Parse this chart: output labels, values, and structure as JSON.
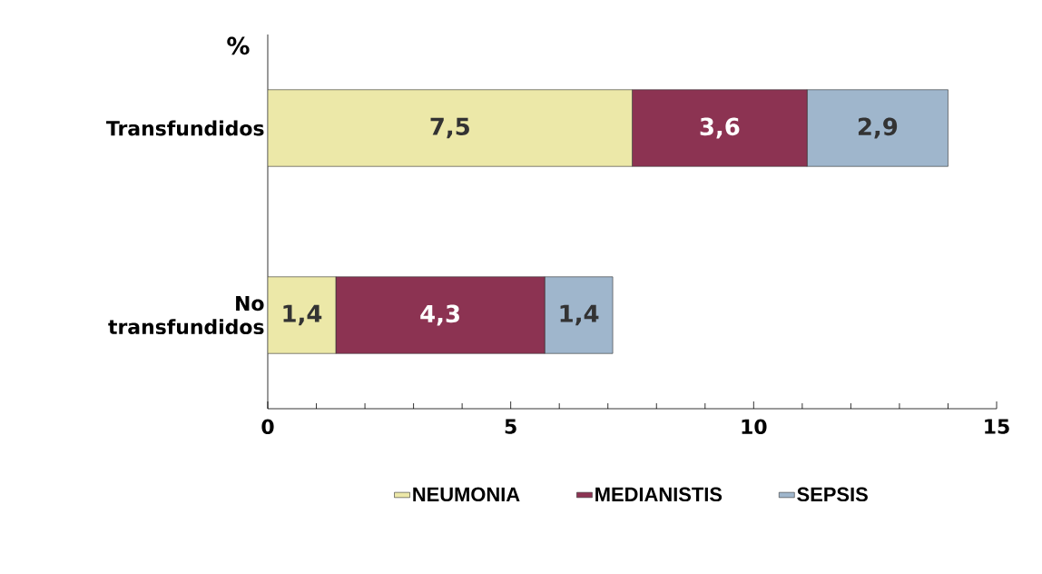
{
  "chart_data": {
    "type": "bar",
    "orientation": "horizontal",
    "stacked": true,
    "ylabel": "%",
    "categories": [
      "Transfundidos",
      "No transfundidos"
    ],
    "series": [
      {
        "name": "NEUMONIA",
        "color": "#ece8a8",
        "values": [
          7.5,
          1.4
        ],
        "value_labels": [
          "7,5",
          "1,4"
        ]
      },
      {
        "name": "MEDIANISTIS",
        "color": "#8c3352",
        "values": [
          3.6,
          4.3
        ],
        "value_labels": [
          "3,6",
          "4,3"
        ]
      },
      {
        "name": "SEPSIS",
        "color": "#9fb6cc",
        "values": [
          2.9,
          1.4
        ],
        "value_labels": [
          "2,9",
          "1,4"
        ]
      }
    ],
    "xlim": [
      0,
      15
    ],
    "xticks": [
      0,
      5,
      10,
      15
    ],
    "grid": false,
    "legend": "bottom"
  }
}
